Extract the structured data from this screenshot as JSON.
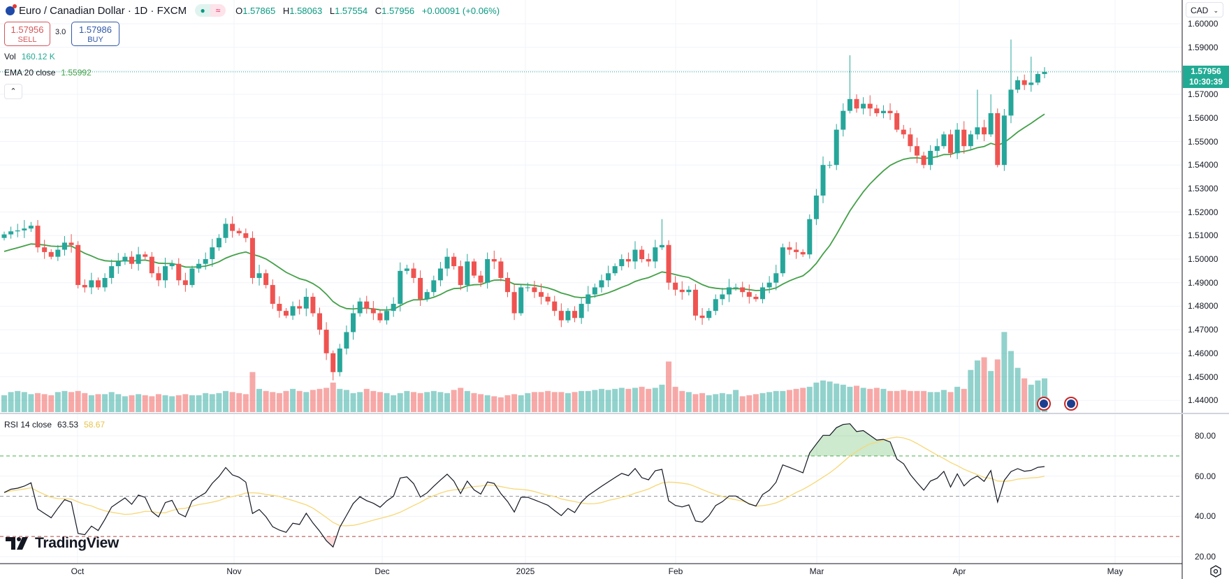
{
  "header": {
    "title": "Euro / Canadian Dollar · 1D · FXCM",
    "status_dot": "●",
    "status_wave": "≈",
    "ohlc": {
      "o_label": "O",
      "o": "1.57865",
      "h_label": "H",
      "h": "1.58063",
      "l_label": "L",
      "l": "1.57554",
      "c_label": "C",
      "c": "1.57956",
      "change": "+0.00091 (+0.06%)"
    }
  },
  "trade": {
    "sell_price": "1.57956",
    "sell_label": "SELL",
    "spread": "3.0",
    "buy_price": "1.57986",
    "buy_label": "BUY"
  },
  "indicators": {
    "vol_label": "Vol",
    "vol_value": "160.12 K",
    "ema_label": "EMA 20 close",
    "ema_value": "1.55992",
    "rsi_label": "RSI 14 close",
    "rsi_value": "63.53",
    "rsi_ma_value": "58.67",
    "collapse": "⌃"
  },
  "price_axis": {
    "currency": "CAD",
    "labels": [
      "1.60000",
      "1.59000",
      "1.57000",
      "1.56000",
      "1.55000",
      "1.54000",
      "1.53000",
      "1.52000",
      "1.51000",
      "1.50000",
      "1.49000",
      "1.48000",
      "1.47000",
      "1.46000",
      "1.45000",
      "1.44000"
    ],
    "last_price": "1.57956",
    "countdown": "10:30:39"
  },
  "rsi_axis": {
    "labels": [
      "80.00",
      "60.00",
      "40.00",
      "20.00"
    ]
  },
  "time_axis": {
    "labels": [
      "Oct",
      "Nov",
      "Dec",
      "2025",
      "Feb",
      "Mar",
      "Apr",
      "May"
    ]
  },
  "branding": {
    "logo": "TradingView"
  },
  "colors": {
    "up": "#26a69a",
    "down": "#ef5350",
    "ema": "#43a047",
    "rsi": "#131722",
    "rsi_ma": "#f7d774",
    "last": "#22ab94"
  },
  "chart_data": {
    "type": "candlestick",
    "symbol": "EURCAD",
    "interval": "1D",
    "ylim": [
      1.44,
      1.6
    ],
    "rsi_ylim": [
      20,
      80
    ],
    "rsi_levels": [
      70,
      50,
      30
    ],
    "ema_period": 20,
    "ema_seed": 1.5025,
    "rsi_period": 14,
    "first_open": 1.509,
    "close": [
      1.5105,
      1.5118,
      1.5122,
      1.513,
      1.5142,
      1.505,
      1.503,
      1.501,
      1.504,
      1.507,
      1.506,
      1.489,
      1.488,
      1.491,
      1.488,
      1.492,
      1.497,
      1.499,
      1.501,
      1.498,
      1.502,
      1.501,
      1.494,
      1.491,
      1.497,
      1.498,
      1.491,
      1.489,
      1.496,
      1.498,
      1.5,
      1.505,
      1.509,
      1.515,
      1.512,
      1.511,
      1.509,
      1.492,
      1.494,
      1.489,
      1.481,
      1.478,
      1.476,
      1.48,
      1.479,
      1.484,
      1.477,
      1.47,
      1.46,
      1.452,
      1.462,
      1.469,
      1.477,
      1.482,
      1.479,
      1.477,
      1.474,
      1.478,
      1.481,
      1.495,
      1.496,
      1.492,
      1.483,
      1.486,
      1.491,
      1.496,
      1.501,
      1.497,
      1.489,
      1.499,
      1.493,
      1.49,
      1.5,
      1.499,
      1.492,
      1.486,
      1.477,
      1.488,
      1.488,
      1.486,
      1.484,
      1.482,
      1.478,
      1.474,
      1.478,
      1.475,
      1.481,
      1.485,
      1.488,
      1.491,
      1.494,
      1.497,
      1.5,
      1.499,
      1.504,
      1.5,
      1.499,
      1.505,
      1.506,
      1.49,
      1.487,
      1.486,
      1.487,
      1.476,
      1.475,
      1.478,
      1.483,
      1.485,
      1.488,
      1.488,
      1.486,
      1.484,
      1.483,
      1.488,
      1.49,
      1.494,
      1.505,
      1.504,
      1.503,
      1.502,
      1.517,
      1.527,
      1.54,
      1.54,
      1.555,
      1.563,
      1.568,
      1.564,
      1.566,
      1.564,
      1.562,
      1.563,
      1.562,
      1.555,
      1.553,
      1.548,
      1.544,
      1.54,
      1.546,
      1.548,
      1.553,
      1.545,
      1.555,
      1.548,
      1.553,
      1.556,
      1.553,
      1.562,
      1.54,
      1.561,
      1.572,
      1.576,
      1.574,
      1.575,
      1.57865,
      1.57956
    ],
    "high_overrides": {
      "98": 1.517,
      "126": 1.5866,
      "150": 1.5933,
      "153": 1.586,
      "145": 1.572,
      "147": 1.57
    },
    "low_overrides": {
      "49": 1.4485,
      "99": 1.487,
      "148": 1.539,
      "103": 1.474
    },
    "volume_k": [
      80,
      95,
      100,
      95,
      85,
      90,
      85,
      80,
      95,
      100,
      95,
      100,
      90,
      80,
      85,
      85,
      95,
      85,
      75,
      80,
      85,
      80,
      75,
      85,
      80,
      75,
      80,
      85,
      80,
      80,
      90,
      85,
      90,
      100,
      95,
      90,
      85,
      190,
      110,
      100,
      95,
      90,
      100,
      110,
      100,
      95,
      105,
      110,
      115,
      140,
      110,
      105,
      90,
      95,
      110,
      100,
      95,
      90,
      80,
      90,
      100,
      95,
      90,
      95,
      100,
      95,
      90,
      105,
      115,
      100,
      90,
      85,
      80,
      75,
      70,
      80,
      85,
      80,
      90,
      95,
      95,
      100,
      95,
      95,
      90,
      95,
      100,
      100,
      105,
      110,
      105,
      110,
      115,
      110,
      115,
      120,
      110,
      115,
      130,
      240,
      120,
      100,
      95,
      85,
      90,
      80,
      85,
      90,
      85,
      105,
      75,
      80,
      85,
      90,
      95,
      100,
      100,
      105,
      110,
      115,
      120,
      140,
      150,
      145,
      135,
      130,
      120,
      125,
      115,
      110,
      115,
      110,
      100,
      100,
      105,
      100,
      100,
      100,
      95,
      95,
      105,
      95,
      120,
      110,
      200,
      245,
      260,
      195,
      250,
      380,
      290,
      210,
      160,
      130,
      150,
      160
    ],
    "events": [
      "EUR",
      "CAD"
    ]
  }
}
